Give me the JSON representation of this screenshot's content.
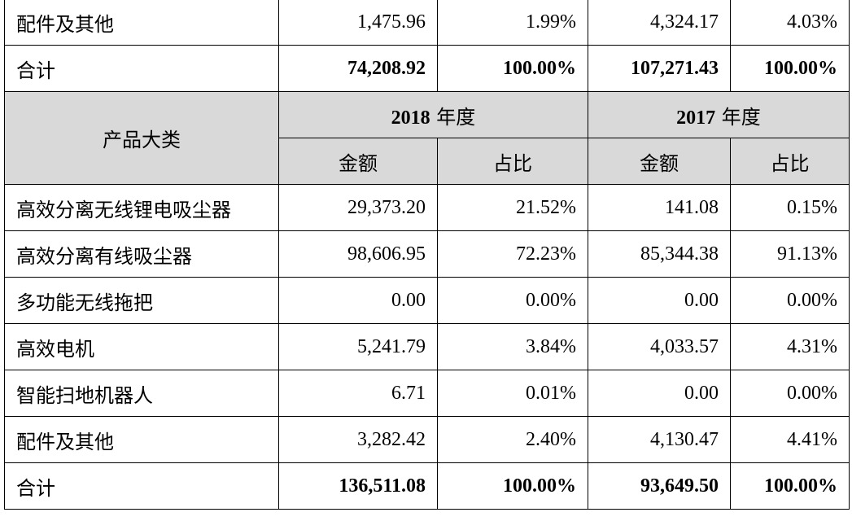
{
  "top_rows": [
    {
      "category": "配件及其他",
      "amount_2019": "1,475.96",
      "share_2019": "1.99%",
      "amount_2018": "4,324.17",
      "share_2018": "4.03%"
    },
    {
      "category": "合计",
      "amount_2019": "74,208.92",
      "share_2019": "100.00%",
      "amount_2018": "107,271.43",
      "share_2018": "100.00%",
      "total": true
    }
  ],
  "header": {
    "product_type": "产品大类",
    "year_a": "2018",
    "year_a_unit": " 年度",
    "year_b": "2017",
    "year_b_unit": " 年度",
    "amount_label": "金额",
    "share_label": "占比"
  },
  "rows": [
    {
      "category": "高效分离无线锂电吸尘器",
      "amount_a": "29,373.20",
      "share_a": "21.52%",
      "amount_b": "141.08",
      "share_b": "0.15%"
    },
    {
      "category": "高效分离有线吸尘器",
      "amount_a": "98,606.95",
      "share_a": "72.23%",
      "amount_b": "85,344.38",
      "share_b": "91.13%"
    },
    {
      "category": "多功能无线拖把",
      "amount_a": "0.00",
      "share_a": "0.00%",
      "amount_b": "0.00",
      "share_b": "0.00%"
    },
    {
      "category": "高效电机",
      "amount_a": "5,241.79",
      "share_a": "3.84%",
      "amount_b": "4,033.57",
      "share_b": "4.31%"
    },
    {
      "category": "智能扫地机器人",
      "amount_a": "6.71",
      "share_a": "0.01%",
      "amount_b": "0.00",
      "share_b": "0.00%"
    },
    {
      "category": "配件及其他",
      "amount_a": "3,282.42",
      "share_a": "2.40%",
      "amount_b": "4,130.47",
      "share_b": "4.41%"
    },
    {
      "category": "合计",
      "amount_a": "136,511.08",
      "share_a": "100.00%",
      "amount_b": "93,649.50",
      "share_b": "100.00%",
      "total": true
    }
  ]
}
